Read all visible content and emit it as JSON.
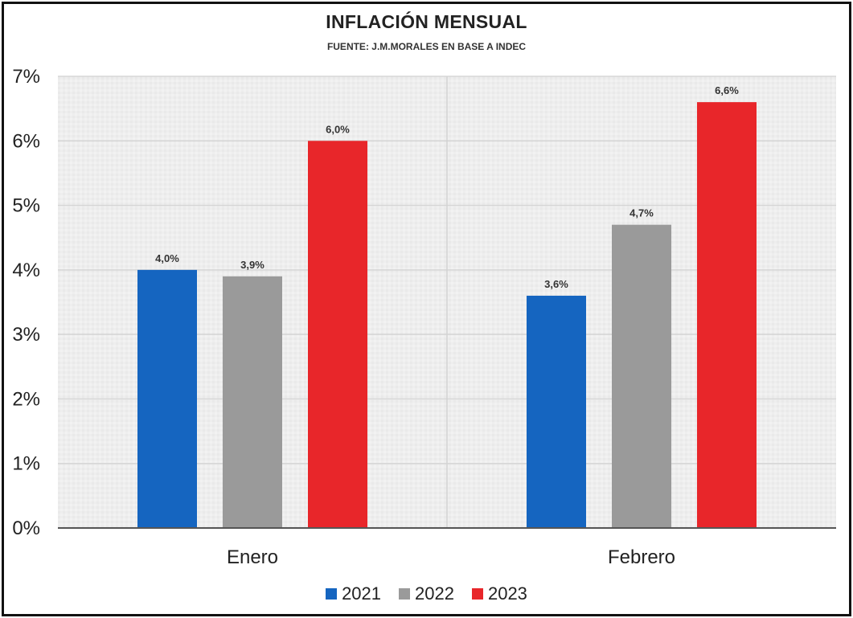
{
  "chart_data": {
    "type": "bar",
    "title": "INFLACIÓN MENSUAL",
    "subtitle": "FUENTE: J.M.MORALES EN BASE A INDEC",
    "categories": [
      "Enero",
      "Febrero"
    ],
    "series": [
      {
        "name": "2021",
        "color": "#1565c0",
        "values": [
          4.0,
          3.6
        ],
        "labels": [
          "4,0%",
          "3,6%"
        ]
      },
      {
        "name": "2022",
        "color": "#9a9a9a",
        "values": [
          3.9,
          4.7
        ],
        "labels": [
          "3,9%",
          "4,7%"
        ]
      },
      {
        "name": "2023",
        "color": "#e8262a",
        "values": [
          6.0,
          6.6
        ],
        "labels": [
          "6,0%",
          "6,6%"
        ]
      }
    ],
    "ylim": [
      0,
      7
    ],
    "yticks": [
      0,
      1,
      2,
      3,
      4,
      5,
      6,
      7
    ],
    "ytick_labels": [
      "0%",
      "1%",
      "2%",
      "3%",
      "4%",
      "5%",
      "6%",
      "7%"
    ],
    "grid": true,
    "legend_position": "bottom"
  }
}
